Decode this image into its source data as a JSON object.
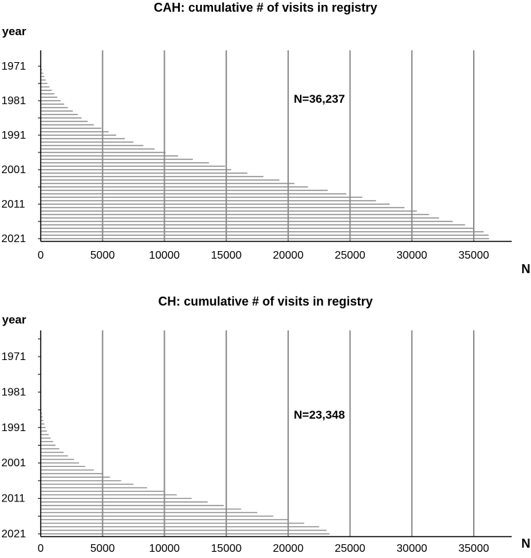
{
  "chart_data": [
    {
      "type": "bar",
      "orientation": "horizontal",
      "title": "CAH: cumulative # of visits in registry",
      "ylabel": "year",
      "xlabel": "N",
      "annotation": "N=36,237",
      "xlim": [
        0,
        38000
      ],
      "xticks": [
        0,
        5000,
        10000,
        15000,
        20000,
        25000,
        30000,
        35000
      ],
      "xtick_labels": [
        "0",
        "5000",
        "10000",
        "15000",
        "20000",
        "25000",
        "30000",
        "35000"
      ],
      "grid": "vertical at x ticks",
      "ytick_labels": [
        "1971",
        "1981",
        "1991",
        "2001",
        "2011",
        "2021"
      ],
      "categories": [
        1971,
        1972,
        1973,
        1974,
        1975,
        1976,
        1977,
        1978,
        1979,
        1980,
        1981,
        1982,
        1983,
        1984,
        1985,
        1986,
        1987,
        1988,
        1989,
        1990,
        1991,
        1992,
        1993,
        1994,
        1995,
        1996,
        1997,
        1998,
        1999,
        2000,
        2001,
        2002,
        2003,
        2004,
        2005,
        2006,
        2007,
        2008,
        2009,
        2010,
        2011,
        2012,
        2013,
        2014,
        2015,
        2016,
        2017,
        2018,
        2019,
        2020,
        2021
      ],
      "values": [
        50,
        120,
        200,
        300,
        400,
        550,
        700,
        900,
        1100,
        1350,
        1600,
        1900,
        2200,
        2600,
        3000,
        3300,
        3800,
        4300,
        4900,
        5500,
        6100,
        6800,
        7500,
        8300,
        9200,
        10100,
        11100,
        12300,
        13600,
        14900,
        15400,
        16700,
        18000,
        19300,
        20500,
        21600,
        23200,
        24700,
        26000,
        27100,
        28200,
        29400,
        30400,
        31400,
        32200,
        33300,
        34300,
        35000,
        35800,
        36200,
        36237
      ]
    },
    {
      "type": "bar",
      "orientation": "horizontal",
      "title": "CH: cumulative # of visits in registry",
      "ylabel": "year",
      "xlabel": "N",
      "annotation": "N=23,348",
      "xlim": [
        0,
        38000
      ],
      "xticks": [
        0,
        5000,
        10000,
        15000,
        20000,
        25000,
        30000,
        35000
      ],
      "xtick_labels": [
        "0",
        "5000",
        "10000",
        "15000",
        "20000",
        "25000",
        "30000",
        "35000"
      ],
      "grid": "vertical at x ticks",
      "ytick_labels": [
        "1971",
        "1981",
        "1991",
        "2001",
        "2011",
        "2021"
      ],
      "categories": [
        1971,
        1972,
        1973,
        1974,
        1975,
        1976,
        1977,
        1978,
        1979,
        1980,
        1981,
        1982,
        1983,
        1984,
        1985,
        1986,
        1987,
        1988,
        1989,
        1990,
        1991,
        1992,
        1993,
        1994,
        1995,
        1996,
        1997,
        1998,
        1999,
        2000,
        2001,
        2002,
        2003,
        2004,
        2005,
        2006,
        2007,
        2008,
        2009,
        2010,
        2011,
        2012,
        2013,
        2014,
        2015,
        2016,
        2017,
        2018,
        2019,
        2020,
        2021
      ],
      "values": [
        0,
        0,
        0,
        0,
        0,
        0,
        0,
        0,
        0,
        0,
        0,
        0,
        0,
        0,
        0,
        50,
        100,
        150,
        220,
        300,
        400,
        500,
        650,
        800,
        1000,
        1200,
        1500,
        1850,
        2200,
        2700,
        3100,
        3600,
        4300,
        5000,
        5600,
        6500,
        7500,
        8600,
        10000,
        11000,
        12200,
        13500,
        14800,
        16200,
        17500,
        18800,
        20000,
        21300,
        22500,
        23100,
        23348
      ]
    }
  ]
}
